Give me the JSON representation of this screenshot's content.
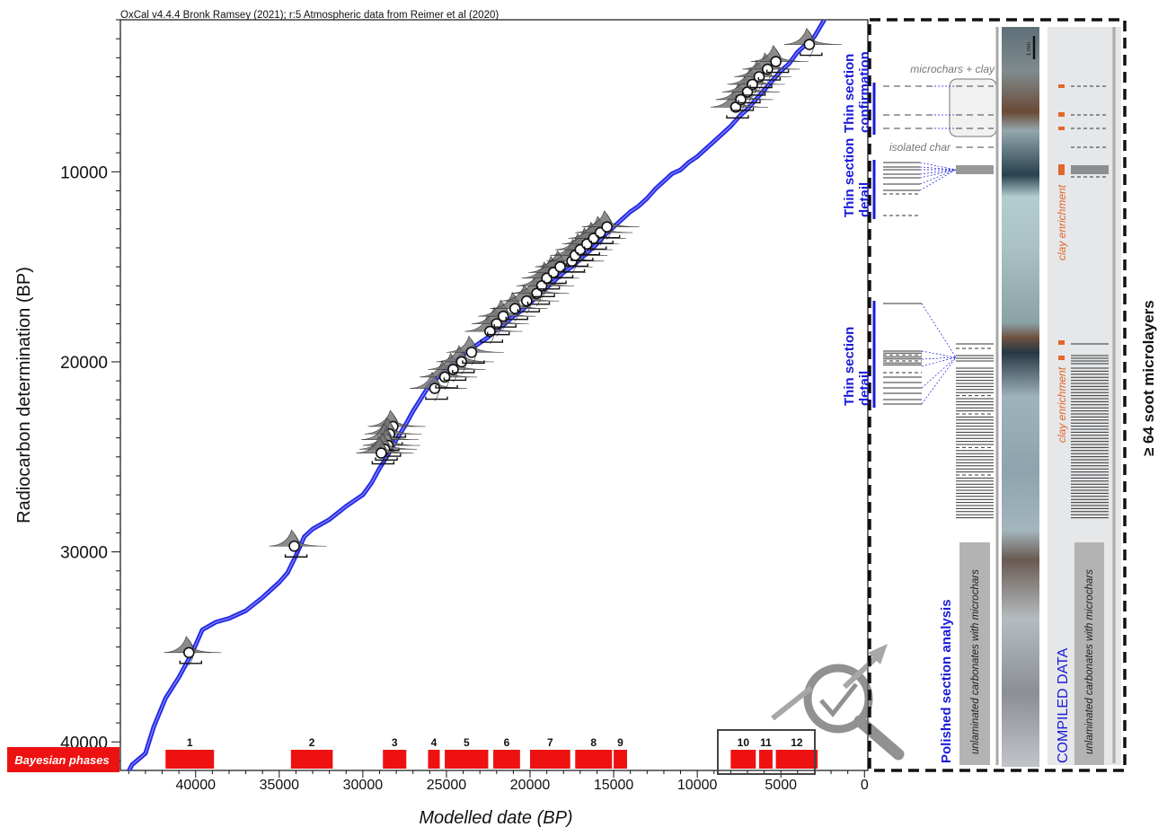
{
  "header": {
    "credit": "OxCal v4.4.4 Bronk Ramsey (2021); r:5 Atmospheric data from Reimer et al (2020)"
  },
  "colors": {
    "curve": "#1e1ee6",
    "phase": "#ee1111",
    "accent_blue": "#1a1ad8",
    "accent_orange": "#e4662a",
    "panel_gray": "#e6e7e9",
    "column_gray": "#b3b3b3"
  },
  "chart_data": {
    "type": "scatter",
    "xlabel": "Modelled date (BP)",
    "ylabel": "Radiocarbon determination (BP)",
    "xlim": [
      44500,
      -200
    ],
    "ylim": [
      2000,
      41500
    ],
    "x_ticks": [
      40000,
      35000,
      30000,
      25000,
      20000,
      15000,
      10000,
      5000,
      0
    ],
    "y_ticks": [
      10000,
      20000,
      30000,
      40000
    ],
    "calibration_curve": [
      [
        44500,
        42400
      ],
      [
        43800,
        41200
      ],
      [
        43000,
        40600
      ],
      [
        42500,
        39200
      ],
      [
        41800,
        37700
      ],
      [
        41000,
        36600
      ],
      [
        40200,
        35300
      ],
      [
        39600,
        34100
      ],
      [
        38800,
        33700
      ],
      [
        38000,
        33500
      ],
      [
        37000,
        33100
      ],
      [
        36000,
        32400
      ],
      [
        35000,
        31600
      ],
      [
        34500,
        31100
      ],
      [
        34000,
        30200
      ],
      [
        33500,
        29200
      ],
      [
        33000,
        28800
      ],
      [
        32000,
        28300
      ],
      [
        31000,
        27600
      ],
      [
        30000,
        27000
      ],
      [
        29500,
        26400
      ],
      [
        29000,
        25600
      ],
      [
        28500,
        24900
      ],
      [
        28000,
        24100
      ],
      [
        27500,
        23400
      ],
      [
        27000,
        22600
      ],
      [
        26500,
        21900
      ],
      [
        26000,
        21200
      ],
      [
        25500,
        20800
      ],
      [
        25000,
        20400
      ],
      [
        24500,
        20000
      ],
      [
        24000,
        19600
      ],
      [
        23500,
        19300
      ],
      [
        23000,
        19000
      ],
      [
        22500,
        18700
      ],
      [
        22000,
        18300
      ],
      [
        21500,
        18000
      ],
      [
        21000,
        17600
      ],
      [
        20500,
        17300
      ],
      [
        20000,
        16900
      ],
      [
        19500,
        16500
      ],
      [
        19000,
        16100
      ],
      [
        18500,
        15700
      ],
      [
        18000,
        15300
      ],
      [
        17500,
        15000
      ],
      [
        17000,
        14600
      ],
      [
        16500,
        14200
      ],
      [
        16000,
        13800
      ],
      [
        15500,
        13300
      ],
      [
        15000,
        12900
      ],
      [
        14500,
        12500
      ],
      [
        14000,
        12100
      ],
      [
        13500,
        11800
      ],
      [
        13000,
        11400
      ],
      [
        12500,
        10900
      ],
      [
        12000,
        10500
      ],
      [
        11500,
        10100
      ],
      [
        11000,
        9900
      ],
      [
        10500,
        9500
      ],
      [
        10000,
        9200
      ],
      [
        9500,
        8800
      ],
      [
        9000,
        8400
      ],
      [
        8500,
        8000
      ],
      [
        8000,
        7600
      ],
      [
        7500,
        7100
      ],
      [
        7000,
        6700
      ],
      [
        6500,
        6200
      ],
      [
        6000,
        5700
      ],
      [
        5500,
        5200
      ],
      [
        5000,
        4700
      ],
      [
        4500,
        4300
      ],
      [
        4000,
        3700
      ],
      [
        3500,
        3300
      ],
      [
        3000,
        2900
      ],
      [
        2400,
        2000
      ]
    ],
    "dated_samples": [
      [
        40400,
        35300
      ],
      [
        34100,
        29700
      ],
      [
        28200,
        23400
      ],
      [
        28400,
        23800
      ],
      [
        28600,
        24100
      ],
      [
        28500,
        24400
      ],
      [
        28700,
        24600
      ],
      [
        28900,
        24800
      ],
      [
        25700,
        21400
      ],
      [
        25100,
        20800
      ],
      [
        24600,
        20400
      ],
      [
        24100,
        20000
      ],
      [
        23500,
        19500
      ],
      [
        22400,
        18400
      ],
      [
        22000,
        18000
      ],
      [
        21600,
        17600
      ],
      [
        20900,
        17200
      ],
      [
        20200,
        16800
      ],
      [
        19600,
        16400
      ],
      [
        19300,
        16000
      ],
      [
        19000,
        15600
      ],
      [
        18600,
        15300
      ],
      [
        18200,
        15000
      ],
      [
        17500,
        14700
      ],
      [
        17300,
        14400
      ],
      [
        17000,
        14100
      ],
      [
        16600,
        13800
      ],
      [
        16200,
        13500
      ],
      [
        15800,
        13200
      ],
      [
        15400,
        12900
      ],
      [
        7700,
        6600
      ],
      [
        7400,
        6200
      ],
      [
        7000,
        5800
      ],
      [
        6700,
        5400
      ],
      [
        6300,
        5000
      ],
      [
        5800,
        4600
      ],
      [
        5300,
        4200
      ],
      [
        3300,
        3300
      ]
    ],
    "phase_band_label": "Bayesian phases",
    "phases": [
      {
        "label": "1",
        "start": 41800,
        "end": 38900
      },
      {
        "label": "2",
        "start": 34300,
        "end": 31800
      },
      {
        "label": "3",
        "start": 28800,
        "end": 27400
      },
      {
        "label": "4",
        "start": 26100,
        "end": 25400
      },
      {
        "label": "5",
        "start": 25100,
        "end": 22500
      },
      {
        "label": "6",
        "start": 22200,
        "end": 20600
      },
      {
        "label": "7",
        "start": 20000,
        "end": 17600
      },
      {
        "label": "8",
        "start": 17300,
        "end": 15100
      },
      {
        "label": "9",
        "start": 15000,
        "end": 14200
      },
      {
        "label": "10",
        "start": 8000,
        "end": 6500
      },
      {
        "label": "11",
        "start": 6300,
        "end": 5500
      },
      {
        "label": "12",
        "start": 5300,
        "end": 2800
      }
    ]
  },
  "microstratigraphy": {
    "right_title": "≥ 64 soot microlayers",
    "confirmation_label": [
      "Thin section",
      "confirmation"
    ],
    "detail_label": [
      "Thin section",
      "detail"
    ],
    "microchars_label": "microchars + clay",
    "isolated_label": "isolated char",
    "polished_label": "Polished section analysis",
    "unlaminated_label": "unlaminated carbonates with microchars",
    "compiled_label": "COMPILED DATA",
    "clay_label": "clay enrichment",
    "scale_label": "1 mm"
  }
}
